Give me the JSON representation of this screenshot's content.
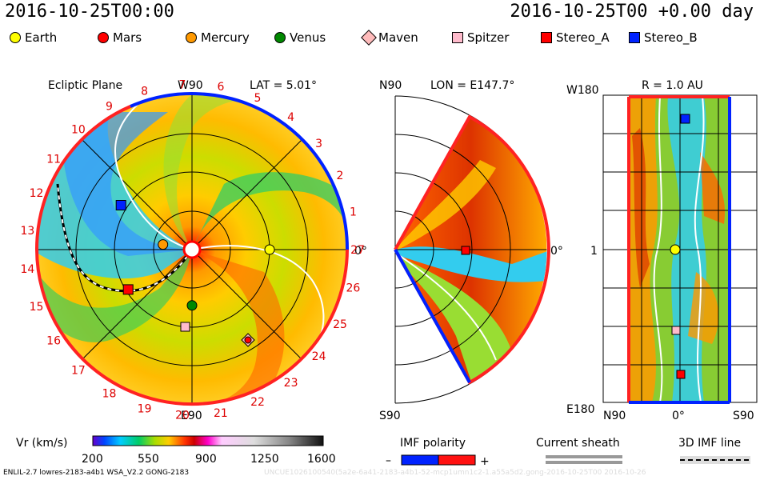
{
  "header": {
    "left_time": "2016-10-25T00:00",
    "right_time": "2016-10-25T00 +0.00 day"
  },
  "legend": [
    {
      "label": "Earth",
      "shape": "circle",
      "color": "#ffff00"
    },
    {
      "label": "Mars",
      "shape": "circle",
      "color": "#ff0000"
    },
    {
      "label": "Mercury",
      "shape": "circle",
      "color": "#ff9900"
    },
    {
      "label": "Venus",
      "shape": "circle",
      "color": "#008800"
    },
    {
      "label": "Maven",
      "shape": "diamond",
      "color": "#ffbbbb"
    },
    {
      "label": "Spitzer",
      "shape": "square",
      "color": "#ffbbcc"
    },
    {
      "label": "Stereo_A",
      "shape": "square",
      "color": "#ff0000"
    },
    {
      "label": "Stereo_B",
      "shape": "square",
      "color": "#0022ff"
    }
  ],
  "panels": {
    "ecliptic": {
      "title": "Ecliptic Plane",
      "lat": "LAT = 5.01°",
      "top": "W90",
      "bottom": "E90",
      "right": "0°"
    },
    "meridional": {
      "top": "N90",
      "bottom": "S90",
      "lon": "LON = E147.7°",
      "right": "0°"
    },
    "synoptic": {
      "title": "R = 1.0 AU",
      "left_top": "W180",
      "left_mid": "1",
      "left_bottom": "E180",
      "bottom_left": "N90",
      "bottom_mid": "0°",
      "bottom_right": "S90"
    }
  },
  "ring_numbers": [
    "27",
    "1",
    "2",
    "3",
    "4",
    "5",
    "6",
    "7",
    "8",
    "9",
    "10",
    "11",
    "12",
    "13",
    "14",
    "15",
    "16",
    "17",
    "18",
    "19",
    "20",
    "21",
    "22",
    "23",
    "24",
    "25",
    "26"
  ],
  "colorbar": {
    "label": "Vr (km/s)",
    "ticks": [
      "200",
      "550",
      "900",
      "1250",
      "1600"
    ]
  },
  "imf_polarity": {
    "label": "IMF polarity",
    "minus": "–",
    "plus": "+"
  },
  "current_sheath": {
    "label": "Current sheath"
  },
  "imf_line": {
    "label": "3D IMF line"
  },
  "footer": {
    "left": "ENLIL-2.7 lowres-2183-a4b1 WSA_V2.2 GONG-2183",
    "faint": "UNCUE1026100540(5a2e-6a41-2183-a4b1-52-mcp1umn1c2-1.a55a5d2.gong-2016-10-25T00   2016-10-26"
  },
  "chart_data": {
    "type": "heatmap",
    "quantity": "Vr (km/s)",
    "vrange": [
      200,
      1600
    ],
    "bodies": [
      {
        "name": "Earth",
        "r_au": 1.0,
        "lon_deg": 0
      },
      {
        "name": "Mercury",
        "r_au": 0.38,
        "lon_deg": 170
      },
      {
        "name": "Venus",
        "r_au": 0.72,
        "lon_deg": 270
      },
      {
        "name": "Stereo_A",
        "r_au": 0.97,
        "lon_deg": 212
      },
      {
        "name": "Stereo_B",
        "r_au": 1.08,
        "lon_deg": 148
      }
    ]
  }
}
